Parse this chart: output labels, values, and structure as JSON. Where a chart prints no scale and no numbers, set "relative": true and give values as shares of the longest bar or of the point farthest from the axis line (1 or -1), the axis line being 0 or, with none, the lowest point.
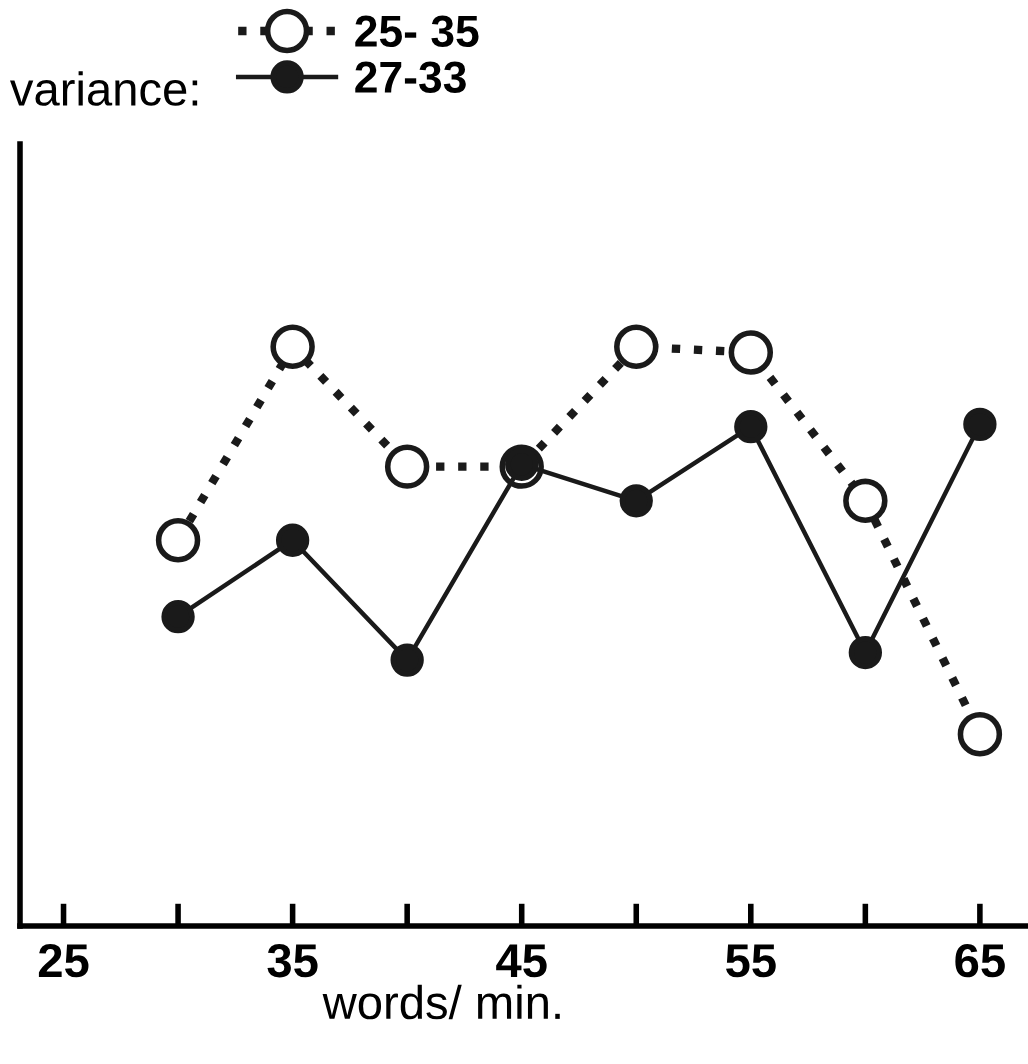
{
  "chart_data": {
    "type": "line",
    "xlabel": "words/ min.",
    "legend_title": "variance:",
    "legend": "top left",
    "relative": true,
    "marker": "circle",
    "grid": false,
    "x": [
      30,
      35,
      40,
      45,
      50,
      55,
      60,
      65
    ],
    "xlim": [
      23.1,
      67.1
    ],
    "xticks": [
      25,
      {
        "value": 30,
        "label": null
      },
      35,
      {
        "value": 40,
        "label": null
      },
      45,
      {
        "value": 50,
        "label": null
      },
      55,
      {
        "value": 60,
        "label": null
      },
      65
    ],
    "series": [
      {
        "name": "25- 35",
        "color": "#1a1a1a",
        "line_style": "dotted",
        "values": [
          0.666,
          1.0,
          0.793,
          0.793,
          1.0,
          0.99,
          0.734,
          0.331
        ]
      },
      {
        "name": "27-33",
        "color": "#1a1a1a",
        "line_style": "solid",
        "values": [
          0.534,
          0.666,
          0.459,
          0.797,
          0.734,
          0.862,
          0.472,
          0.866
        ]
      }
    ]
  }
}
